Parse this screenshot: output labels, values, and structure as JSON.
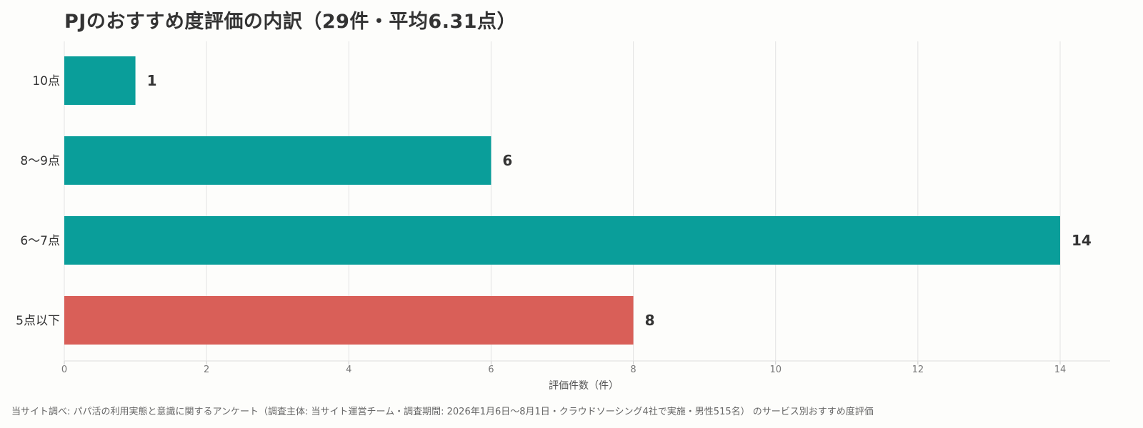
{
  "chart_data": {
    "type": "bar",
    "orientation": "horizontal",
    "title": "PJのおすすめ度評価の内訳（29件・平均6.31点）",
    "xlabel": "評価件数（件）",
    "ylabel": "",
    "categories": [
      "10点",
      "8〜9点",
      "6〜7点",
      "5点以下"
    ],
    "values": [
      1,
      6,
      14,
      8
    ],
    "bar_colors": [
      "#0a9e9a",
      "#0a9e9a",
      "#0a9e9a",
      "#d95f58"
    ],
    "xlim": [
      0,
      14
    ],
    "xticks": [
      0,
      2,
      4,
      6,
      8,
      10,
      12,
      14
    ],
    "grid": "vertical",
    "legend": "none"
  },
  "footer": {
    "source": "当サイト調べ: パパ活の利用実態と意識に関するアンケート（調査主体: 当サイト運営チーム・調査期間: 2026年1月6日〜8月1日・クラウドソーシング4社で実施・男性515名） のサービス別おすすめ度評価"
  }
}
